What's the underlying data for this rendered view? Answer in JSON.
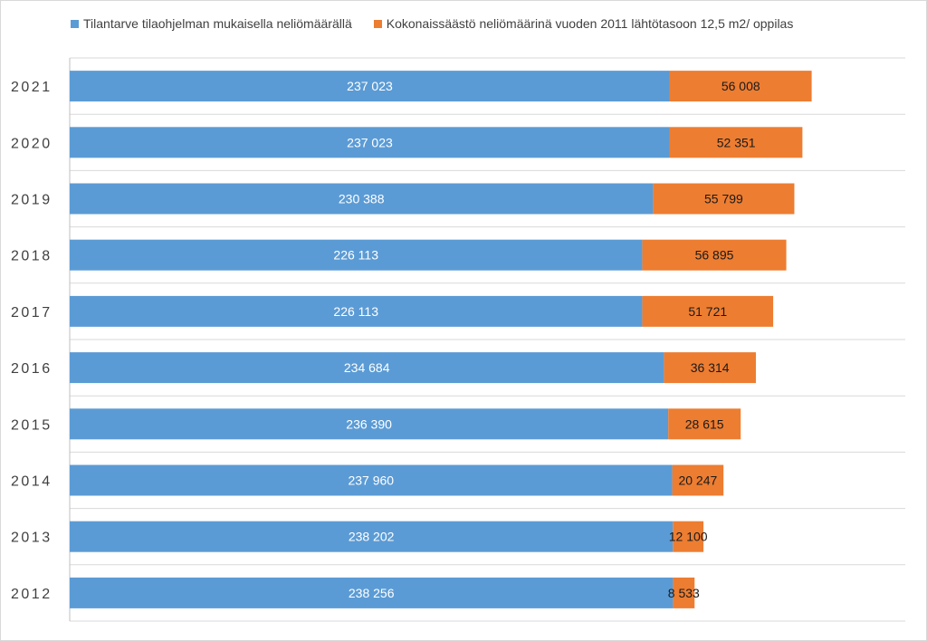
{
  "chart_data": {
    "type": "bar",
    "orientation": "horizontal",
    "stacked": true,
    "title": "",
    "xlabel": "",
    "ylabel": "",
    "xlim": [
      0,
      330000
    ],
    "grid": true,
    "legend_position": "top",
    "categories": [
      "2021",
      "2020",
      "2019",
      "2018",
      "2017",
      "2016",
      "2015",
      "2014",
      "2013",
      "2012"
    ],
    "series": [
      {
        "name": "Tilantarve tilaohjelman mukaisella neliömäärällä",
        "color": "#5b9bd5",
        "values": [
          237023,
          237023,
          230388,
          226113,
          226113,
          234684,
          236390,
          237960,
          238202,
          238256
        ],
        "labels": [
          "237 023",
          "237 023",
          "230 388",
          "226 113",
          "226 113",
          "234 684",
          "236 390",
          "237 960",
          "238 202",
          "238 256"
        ]
      },
      {
        "name": "Kokonaissäästö neliömäärinä vuoden 2011 lähtötasoon 12,5 m2/ oppilas",
        "color": "#ed7d31",
        "values": [
          56008,
          52351,
          55799,
          56895,
          51721,
          36314,
          28615,
          20247,
          12100,
          8533
        ],
        "labels": [
          "56 008",
          "52 351",
          "55 799",
          "56 895",
          "51 721",
          "36 314",
          "28 615",
          "20 247",
          "12 100",
          "8 533"
        ]
      }
    ]
  }
}
